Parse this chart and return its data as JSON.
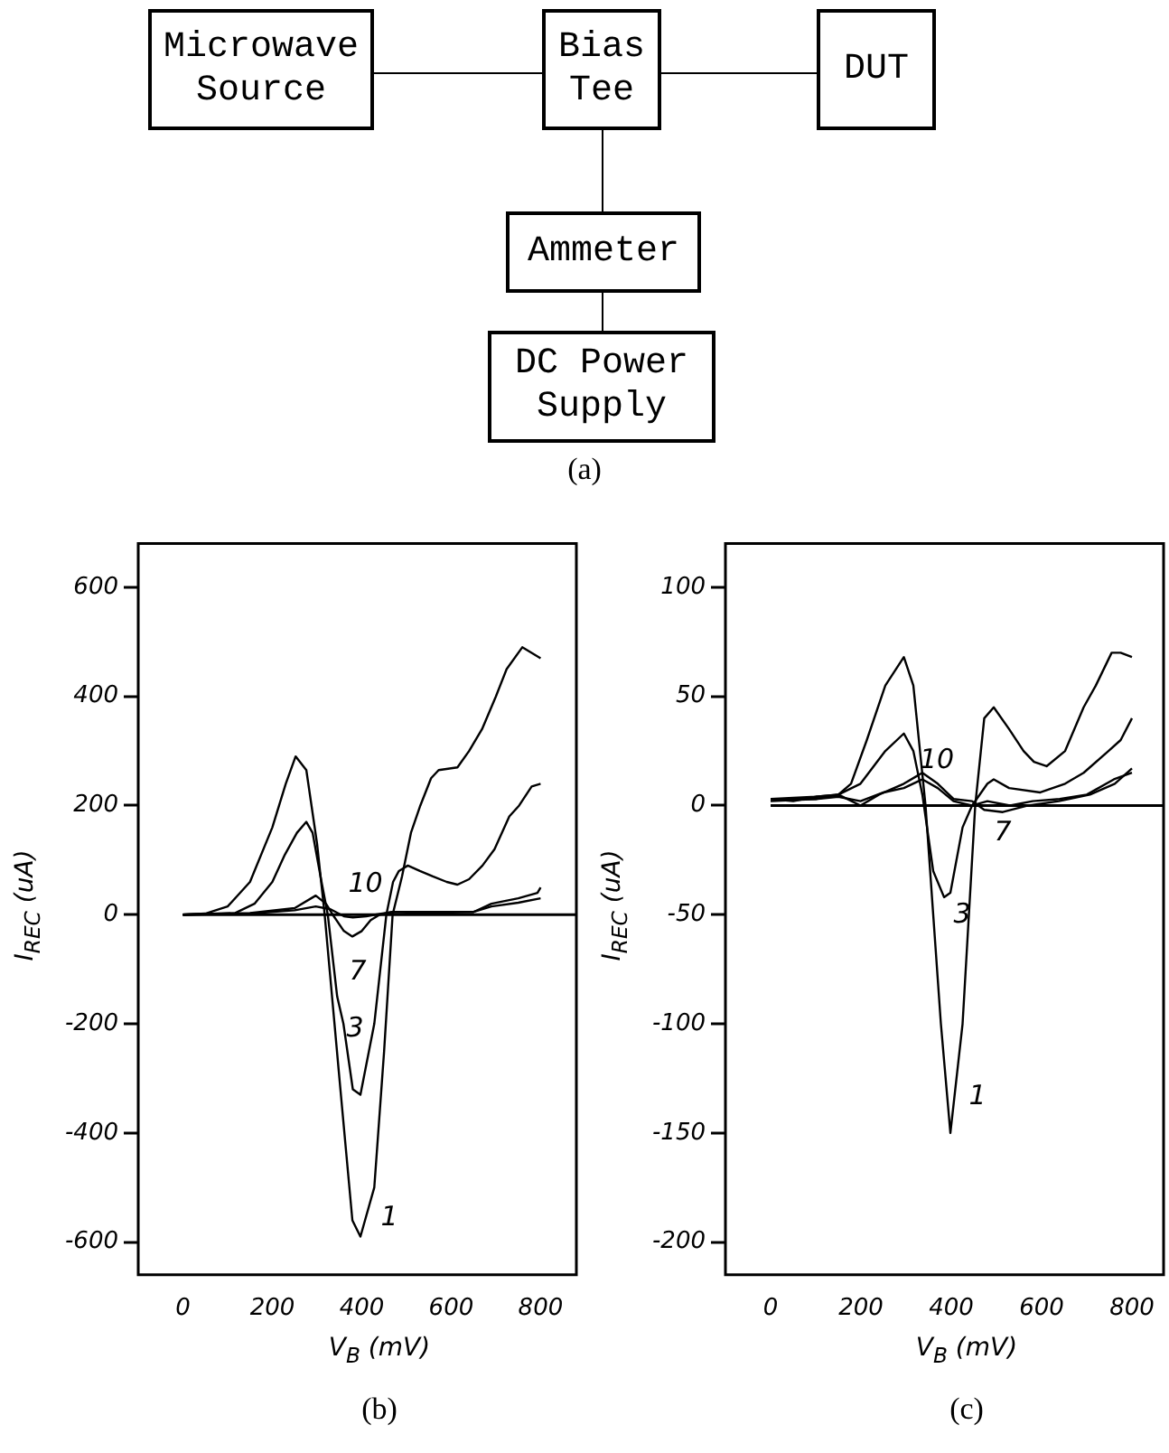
{
  "chart_data": [
    {
      "type": "other",
      "title": "(a)",
      "annotations": [
        "Microwave Source",
        "Bias Tee",
        "DUT",
        "Ammeter",
        "DC Power Supply"
      ]
    },
    {
      "type": "line",
      "title": "(b)",
      "xlabel": "V$_{B}$ (mV)",
      "ylabel": "I$_{REC}$ (uA)",
      "xlim": [
        -100,
        880
      ],
      "ylim": [
        -660,
        680
      ],
      "xticks": [
        0,
        200,
        400,
        600,
        800
      ],
      "yticks": [
        -600,
        -400,
        -200,
        0,
        200,
        400,
        600
      ],
      "grid": false,
      "legend": false,
      "marker": "none",
      "line_style": "solid",
      "ref_lines": [
        {
          "axis": "y",
          "value": 0
        }
      ],
      "series": [
        {
          "name": "1",
          "color": "#000000",
          "x": [
            0,
            50,
            100,
            150,
            200,
            230,
            252,
            276,
            300,
            317,
            350,
            379,
            397,
            428,
            450,
            469,
            490,
            510,
            531,
            555,
            572,
            614,
            640,
            669,
            700,
            724,
            759,
            800
          ],
          "values": [
            0,
            2,
            15,
            60,
            160,
            240,
            290,
            265,
            130,
            0,
            -300,
            -560,
            -590,
            -500,
            -250,
            0,
            70,
            150,
            200,
            250,
            265,
            270,
            300,
            340,
            400,
            450,
            490,
            470
          ]
        },
        {
          "name": "3",
          "color": "#000000",
          "x": [
            0,
            117,
            160,
            200,
            228,
            255,
            276,
            290,
            310,
            324,
            345,
            359,
            380,
            397,
            428,
            455,
            470,
            483,
            503,
            530,
            559,
            590,
            614,
            640,
            670,
            697,
            730,
            752,
            780,
            800
          ],
          "values": [
            0,
            3,
            20,
            60,
            110,
            150,
            170,
            150,
            60,
            0,
            -150,
            -200,
            -320,
            -330,
            -200,
            0,
            60,
            80,
            90,
            80,
            70,
            60,
            55,
            65,
            90,
            120,
            180,
            200,
            235,
            240
          ]
        },
        {
          "name": "7",
          "color": "#000000",
          "x": [
            0,
            150,
            250,
            297,
            320,
            335,
            360,
            379,
            400,
            420,
            440,
            469,
            550,
            650,
            690,
            750,
            793,
            800
          ],
          "values": [
            0,
            3,
            12,
            35,
            20,
            0,
            -30,
            -40,
            -30,
            -10,
            0,
            5,
            5,
            5,
            20,
            30,
            40,
            50
          ]
        },
        {
          "name": "10",
          "color": "#000000",
          "x": [
            0,
            150,
            250,
            297,
            330,
            360,
            380,
            410,
            430,
            469,
            550,
            650,
            690,
            750,
            800
          ],
          "values": [
            0,
            2,
            8,
            15,
            10,
            -3,
            -5,
            -3,
            0,
            5,
            3,
            5,
            15,
            22,
            30
          ]
        }
      ]
    },
    {
      "type": "line",
      "title": "(c)",
      "xlabel": "V$_{B}$ (mV)",
      "ylabel": "I$_{REC}$ (uA)",
      "xlim": [
        -100,
        870
      ],
      "ylim": [
        -215,
        120
      ],
      "xticks": [
        0,
        200,
        400,
        600,
        800
      ],
      "yticks": [
        -200,
        -150,
        -100,
        -50,
        0,
        50,
        100
      ],
      "grid": false,
      "legend": false,
      "marker": "none",
      "line_style": "solid",
      "ref_lines": [
        {
          "axis": "y",
          "value": 0
        }
      ],
      "series": [
        {
          "name": "1",
          "color": "#000000",
          "x": [
            0,
            50,
            100,
            150,
            178,
            213,
            254,
            295,
            316,
            343,
            377,
            398,
            425,
            453,
            473,
            494,
            528,
            560,
            583,
            611,
            652,
            693,
            720,
            755,
            775,
            800
          ],
          "values": [
            3,
            2,
            4,
            5,
            10,
            30,
            55,
            68,
            55,
            0,
            -100,
            -150,
            -100,
            0,
            40,
            45,
            35,
            25,
            20,
            18,
            25,
            45,
            55,
            70,
            70,
            68
          ]
        },
        {
          "name": "3",
          "color": "#000000",
          "x": [
            0,
            100,
            150,
            199,
            254,
            295,
            316,
            336,
            360,
            384,
            398,
            425,
            446,
            480,
            494,
            528,
            597,
            652,
            693,
            748,
            775,
            800
          ],
          "values": [
            3,
            3,
            5,
            10,
            25,
            33,
            25,
            5,
            -30,
            -42,
            -40,
            -10,
            0,
            10,
            12,
            8,
            6,
            10,
            15,
            25,
            30,
            40
          ]
        },
        {
          "name": "7",
          "color": "#000000",
          "x": [
            0,
            100,
            150,
            199,
            240,
            295,
            336,
            370,
            405,
            446,
            473,
            514,
            570,
            638,
            707,
            762,
            800
          ],
          "values": [
            3,
            4,
            5,
            0,
            5,
            10,
            15,
            10,
            3,
            2,
            -2,
            -3,
            0,
            2,
            5,
            10,
            17
          ]
        },
        {
          "name": "10",
          "color": "#000000",
          "x": [
            0,
            100,
            150,
            199,
            250,
            295,
            336,
            370,
            405,
            446,
            480,
            530,
            580,
            640,
            700,
            760,
            800
          ],
          "values": [
            2,
            3,
            4,
            2,
            6,
            8,
            12,
            8,
            2,
            0,
            2,
            0,
            2,
            3,
            5,
            12,
            15
          ]
        }
      ]
    }
  ]
}
